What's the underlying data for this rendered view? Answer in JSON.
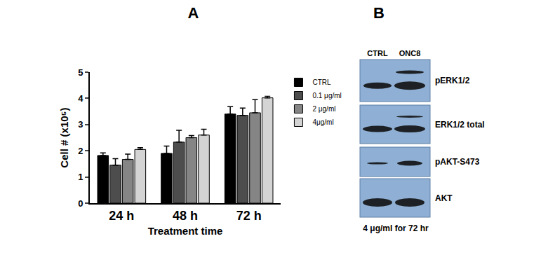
{
  "chart_data": {
    "type": "bar",
    "title": "A",
    "x_label": "Treatment time",
    "y_label": "Cell # (x10⁵)",
    "categories": [
      "24 h",
      "48 h",
      "72 h"
    ],
    "series": [
      {
        "name": "CTRL",
        "color": "#000000",
        "values": [
          1.82,
          1.9,
          3.4
        ],
        "error": [
          0.1,
          0.28,
          0.28
        ]
      },
      {
        "name": "0.1 μg/ml",
        "color": "#4d4d4d",
        "values": [
          1.45,
          2.33,
          3.35
        ],
        "error": [
          0.25,
          0.45,
          0.28
        ]
      },
      {
        "name": "2 μg/ml",
        "color": "#858585",
        "values": [
          1.67,
          2.5,
          3.45
        ],
        "error": [
          0.2,
          0.08,
          0.5
        ]
      },
      {
        "name": "4μg/ml",
        "color": "#d4d4d4",
        "values": [
          2.05,
          2.6,
          4.02
        ],
        "error": [
          0.07,
          0.22,
          0.06
        ]
      }
    ],
    "ylim": [
      0,
      5
    ],
    "yticks": [
      0,
      1,
      2,
      3,
      4,
      5
    ],
    "grid": false,
    "legend": "upper right"
  },
  "blot": {
    "title": "B",
    "columns": [
      "CTRL",
      "ONC8"
    ],
    "rows": [
      "pERK1/2",
      "ERK1/2 total",
      "pAKT-S473",
      "AKT"
    ],
    "caption": "4 μg/ml for 72 hr"
  }
}
